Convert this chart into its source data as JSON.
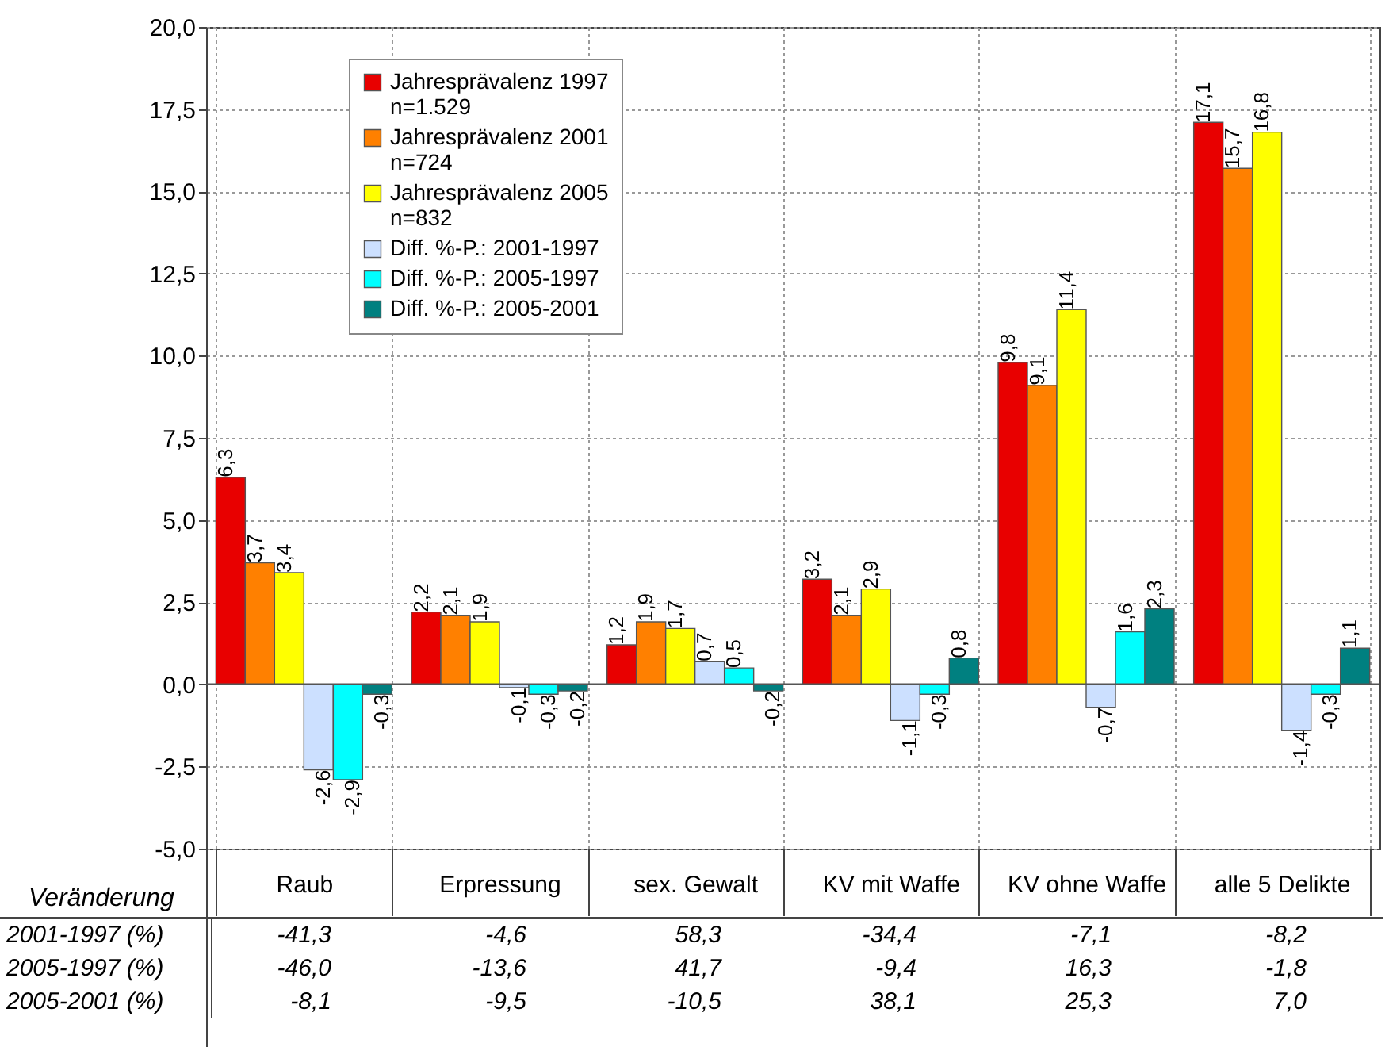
{
  "chart_data": {
    "type": "bar",
    "categories": [
      "Raub",
      "Erpressung",
      "sex. Gewalt",
      "KV mit Waffe",
      "KV ohne Waffe",
      "alle 5 Delikte"
    ],
    "series": [
      {
        "name": "Jahresprävalenz 1997\nn=1.529",
        "color": "#e80000",
        "values": [
          6.3,
          2.2,
          1.2,
          3.2,
          9.8,
          17.1
        ],
        "value_labels": [
          "6,3",
          "2,2",
          "1,2",
          "3,2",
          "9,8",
          "17,1"
        ]
      },
      {
        "name": "Jahresprävalenz 2001\nn=724",
        "color": "#ff8000",
        "values": [
          3.7,
          2.1,
          1.9,
          2.1,
          9.1,
          15.7
        ],
        "value_labels": [
          "3,7",
          "2,1",
          "1,9",
          "2,1",
          "9,1",
          "15,7"
        ]
      },
      {
        "name": "Jahresprävalenz 2005\nn=832",
        "color": "#ffff00",
        "values": [
          3.4,
          1.9,
          1.7,
          2.9,
          11.4,
          16.8
        ],
        "value_labels": [
          "3,4",
          "1,9",
          "1,7",
          "2,9",
          "11,4",
          "16,8"
        ]
      },
      {
        "name": "Diff. %-P.: 2001-1997",
        "color": "#cce0ff",
        "values": [
          -2.6,
          -0.1,
          0.7,
          -1.1,
          -0.7,
          -1.4
        ],
        "value_labels": [
          "-2,6",
          "-0,1",
          "0,7",
          "-1,1",
          "-0,7",
          "-1,4"
        ]
      },
      {
        "name": "Diff. %-P.: 2005-1997",
        "color": "#00ffff",
        "values": [
          -2.9,
          -0.3,
          0.5,
          -0.3,
          1.6,
          -0.3
        ],
        "value_labels": [
          "-2,9",
          "-0,3",
          "0,5",
          "-0,3",
          "1,6",
          "-0,3"
        ]
      },
      {
        "name": "Diff. %-P.: 2005-2001",
        "color": "#008080",
        "values": [
          -0.3,
          -0.2,
          -0.2,
          0.8,
          2.3,
          1.1
        ],
        "value_labels": [
          "-0,3",
          "-0,2",
          "-0,2",
          "0,8",
          "2,3",
          "1,1"
        ]
      }
    ],
    "ylim": [
      -5,
      20
    ],
    "yticks": [
      {
        "value": -5,
        "label": "-5,0"
      },
      {
        "value": -2.5,
        "label": "-2,5"
      },
      {
        "value": 0,
        "label": "0,0"
      },
      {
        "value": 2.5,
        "label": "2,5"
      },
      {
        "value": 5,
        "label": "5,0"
      },
      {
        "value": 7.5,
        "label": "7,5"
      },
      {
        "value": 10,
        "label": "10,0"
      },
      {
        "value": 12.5,
        "label": "12,5"
      },
      {
        "value": 15,
        "label": "15,0"
      },
      {
        "value": 17.5,
        "label": "17,5"
      },
      {
        "value": 20,
        "label": "20,0"
      }
    ],
    "ref_lines": [
      {
        "axis": "y",
        "value": 0
      }
    ],
    "grid": true,
    "legend": "top left",
    "annotations": [
      "Veränderung",
      "2001-1997 (%)",
      "-41,3",
      "-4,6",
      "58,3",
      "-34,4",
      "-7,1",
      "-8,2",
      "2005-1997 (%)",
      "-46,0",
      "-13,6",
      "41,7",
      "-9,4",
      "16,3",
      "-1,8",
      "2005-2001 (%)",
      "-8,1",
      "-9,5",
      "-10,5",
      "38,1",
      "25,3",
      "7,0"
    ]
  }
}
